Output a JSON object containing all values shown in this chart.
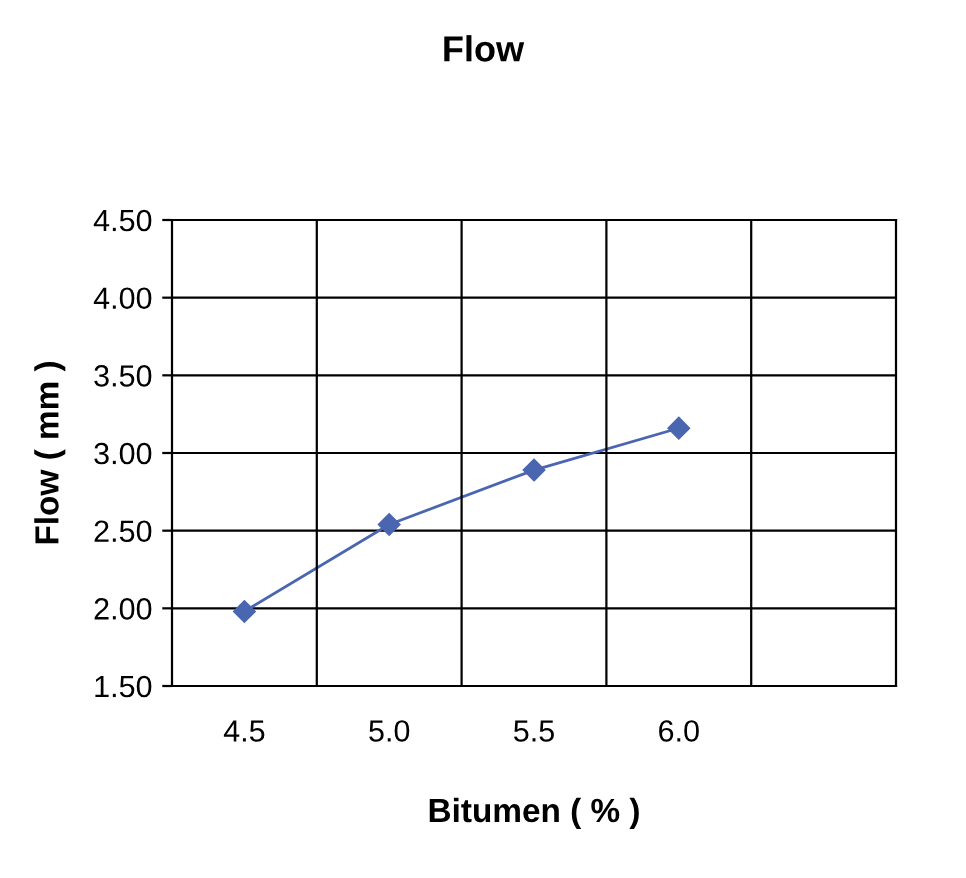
{
  "chart_data": {
    "type": "line",
    "title": "Flow",
    "xlabel": "Bitumen ( % )",
    "ylabel": "Flow ( mm )",
    "categories": [
      "4.5",
      "5.0",
      "5.5",
      "6.0",
      null
    ],
    "series": [
      {
        "color": "#4a66b0",
        "values": [
          1.98,
          2.54,
          2.89,
          3.16,
          null
        ]
      }
    ],
    "ylim": [
      1.5,
      4.5
    ],
    "yticks": [
      {
        "value": 1.5,
        "label": "1.50"
      },
      {
        "value": 2.0,
        "label": "2.00"
      },
      {
        "value": 2.5,
        "label": "2.50"
      },
      {
        "value": 3.0,
        "label": "3.00"
      },
      {
        "value": 3.5,
        "label": "3.50"
      },
      {
        "value": 4.0,
        "label": "4.00"
      },
      {
        "value": 4.5,
        "label": "4.50"
      }
    ],
    "grid": true,
    "marker": "diamond",
    "line_style": "solid"
  }
}
